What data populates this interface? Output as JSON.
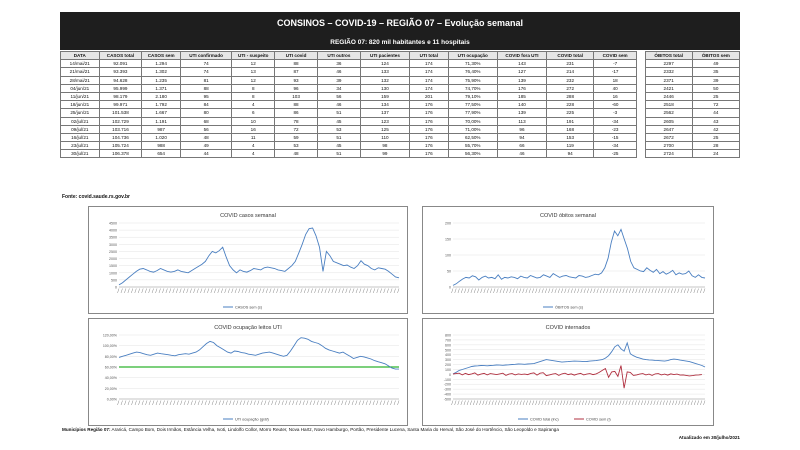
{
  "header": {
    "title": "CONSINOS – COVID-19 – REGIÃO 07 – Evolução semanal",
    "subtitle": "REGIÃO 07: 820 mil habitantes e 11 hospitais"
  },
  "table": {
    "columns": [
      "DATA",
      "CASOS total",
      "CASOS sem",
      "UTI confirmado",
      "UTI - suspeito",
      "UTI covid",
      "UTI outros",
      "UTI pacientes",
      "UTI total",
      "UTI ocupação",
      "COVID fora UTI",
      "COVID total",
      "COVID sem",
      "",
      "ÓBITOS total",
      "ÓBITOS sem"
    ],
    "rows": [
      [
        "14/mai/21",
        "92.091",
        "1.294",
        "74",
        "12",
        "88",
        "36",
        "124",
        "174",
        "71,30%",
        "143",
        "231",
        "-7",
        "",
        "2297",
        "49"
      ],
      [
        "21/mai/21",
        "93.393",
        "1.302",
        "74",
        "13",
        "87",
        "46",
        "133",
        "174",
        "76,40%",
        "127",
        "214",
        "-17",
        "",
        "2332",
        "35"
      ],
      [
        "28/mai/21",
        "94.628",
        "1.235",
        "81",
        "12",
        "93",
        "39",
        "132",
        "174",
        "75,90%",
        "139",
        "232",
        "18",
        "",
        "2371",
        "39"
      ],
      [
        "04/jun/21",
        "95.999",
        "1.371",
        "88",
        "8",
        "96",
        "34",
        "130",
        "174",
        "74,70%",
        "176",
        "272",
        "40",
        "",
        "2421",
        "50"
      ],
      [
        "11/jun/21",
        "98.179",
        "2.180",
        "95",
        "8",
        "103",
        "56",
        "159",
        "201",
        "79,10%",
        "185",
        "288",
        "16",
        "",
        "2446",
        "25"
      ],
      [
        "18/jun/21",
        "99.971",
        "1.792",
        "84",
        "4",
        "88",
        "46",
        "134",
        "176",
        "77,50%",
        "140",
        "228",
        "-60",
        "",
        "2518",
        "72"
      ],
      [
        "25/jun/21",
        "101.538",
        "1.667",
        "80",
        "6",
        "86",
        "51",
        "137",
        "176",
        "77,90%",
        "139",
        "225",
        "-3",
        "",
        "2562",
        "44"
      ],
      [
        "02/jul/21",
        "102.729",
        "1.191",
        "68",
        "10",
        "78",
        "45",
        "123",
        "176",
        "70,00%",
        "113",
        "191",
        "-34",
        "",
        "2605",
        "43"
      ],
      [
        "09/jul/21",
        "103.716",
        "987",
        "56",
        "16",
        "72",
        "53",
        "125",
        "176",
        "71,00%",
        "96",
        "168",
        "-23",
        "",
        "2647",
        "42"
      ],
      [
        "16/jul/21",
        "104.736",
        "1.020",
        "48",
        "11",
        "59",
        "51",
        "110",
        "176",
        "62,50%",
        "94",
        "153",
        "-15",
        "",
        "2672",
        "25"
      ],
      [
        "23/jul/21",
        "105.724",
        "988",
        "49",
        "4",
        "53",
        "45",
        "98",
        "176",
        "55,70%",
        "66",
        "119",
        "-34",
        "",
        "2700",
        "28"
      ],
      [
        "30/jul/21",
        "106.378",
        "654",
        "44",
        "4",
        "48",
        "51",
        "99",
        "176",
        "56,30%",
        "46",
        "94",
        "-25",
        "",
        "2724",
        "24"
      ]
    ]
  },
  "source_text": "Fonte: covid.saude.rs.gov.br",
  "footer": {
    "municipios_label": "Municípios Região 07:",
    "municipios_list": "Araricá, Campo Bom, Dois Irmãos, Estância Velha, Ivoti, Lindolfo Collor, Morro Reuter, Nova Hartz, Novo Hamburgo, Portão, Presidente Lucena, Santa Maria do Herval, São José do Hortêncio, São Leopoldo e Sapiranga",
    "updated": "Atualizado em 30/julho/2021"
  },
  "colors": {
    "header_bg": "#1e1e1e",
    "line_blue": "#4a7fc1",
    "line_red": "#b03040",
    "threshold_green": "#2db52d"
  },
  "chart_data": [
    {
      "type": "line",
      "title": "COVID casos semanal",
      "ylim": [
        0,
        4500
      ],
      "yticks": [
        "0",
        "500",
        "1000",
        "1500",
        "2000",
        "2500",
        "3000",
        "3500",
        "4000",
        "4500"
      ],
      "series": [
        {
          "name": "CASOS sem (s)",
          "color": "#4a7fc1",
          "values": [
            150,
            300,
            500,
            700,
            900,
            1100,
            1250,
            1300,
            1200,
            1100,
            1050,
            1150,
            1300,
            1200,
            1100,
            1050,
            1100,
            1200,
            1100,
            1050,
            1000,
            1150,
            1300,
            1450,
            1600,
            1800,
            2200,
            2500,
            2400,
            2550,
            2800,
            2100,
            1500,
            1200,
            1000,
            1200,
            1100,
            1050,
            1150,
            1300,
            1250,
            1200,
            1350,
            1400,
            1350,
            1300,
            1200,
            1150,
            1100,
            1300,
            1500,
            1800,
            2400,
            3000,
            3700,
            4100,
            4150,
            3600,
            2800,
            1100,
            2500,
            2200,
            1800,
            1700,
            1600,
            1500,
            1550,
            1400,
            1300,
            1500,
            1850,
            1600,
            1500,
            1300,
            1200,
            1350,
            1300,
            1250,
            1100,
            900,
            700,
            650
          ]
        }
      ]
    },
    {
      "type": "line",
      "title": "COVID óbitos semanal",
      "ylim": [
        0,
        200
      ],
      "yticks": [
        "0",
        "50",
        "100",
        "150",
        "200"
      ],
      "series": [
        {
          "name": "ÓBITOS sem (s)",
          "color": "#4a7fc1",
          "values": [
            5,
            10,
            18,
            25,
            30,
            28,
            35,
            32,
            22,
            30,
            34,
            28,
            30,
            26,
            38,
            24,
            30,
            28,
            32,
            30,
            26,
            34,
            30,
            28,
            36,
            32,
            28,
            30,
            38,
            34,
            30,
            42,
            36,
            30,
            34,
            36,
            32,
            30,
            28,
            36,
            34,
            30,
            32,
            36,
            40,
            38,
            44,
            60,
            90,
            140,
            175,
            160,
            180,
            150,
            120,
            80,
            60,
            55,
            50,
            48,
            60,
            52,
            46,
            55,
            42,
            48,
            40,
            45,
            52,
            38,
            44,
            40,
            42,
            50,
            35,
            30,
            38,
            30,
            28
          ]
        }
      ]
    },
    {
      "type": "line",
      "title": "COVID ocupação leitos UTI",
      "ylim": [
        0,
        120
      ],
      "yticks": [
        "0,00%",
        "20,00%",
        "40,00%",
        "60,00%",
        "80,00%",
        "100,00%",
        "120,00%"
      ],
      "threshold": 60,
      "series": [
        {
          "name": "UTI ocupação (gráf)",
          "color": "#4a7fc1",
          "values": [
            78,
            80,
            82,
            84,
            86,
            88,
            87,
            85,
            83,
            82,
            84,
            86,
            85,
            84,
            83,
            82,
            81,
            83,
            84,
            85,
            84,
            86,
            88,
            92,
            98,
            104,
            108,
            106,
            100,
            96,
            92,
            88,
            86,
            90,
            89,
            87,
            86,
            84,
            83,
            82,
            84,
            86,
            87,
            88,
            86,
            84,
            82,
            80,
            82,
            90,
            100,
            110,
            115,
            114,
            112,
            108,
            106,
            104,
            100,
            95,
            92,
            90,
            88,
            86,
            88,
            84,
            80,
            76,
            78,
            80,
            79,
            77,
            75,
            72,
            70,
            68,
            66,
            62,
            58,
            56,
            56
          ]
        }
      ]
    },
    {
      "type": "line",
      "title": "COVID internados",
      "ylim": [
        -500,
        800
      ],
      "yticks": [
        "-500",
        "-400",
        "-300",
        "-200",
        "-100",
        "0",
        "100",
        "200",
        "300",
        "400",
        "500",
        "600",
        "700",
        "800"
      ],
      "series": [
        {
          "name": "COVID total (inc)",
          "color": "#4a7fc1",
          "values": [
            10,
            40,
            80,
            100,
            120,
            140,
            160,
            170,
            175,
            180,
            178,
            175,
            180,
            185,
            190,
            188,
            185,
            190,
            195,
            200,
            205,
            210,
            208,
            205,
            210,
            215,
            220,
            240,
            260,
            280,
            300,
            290,
            280,
            270,
            260,
            250,
            255,
            260,
            265,
            270,
            268,
            265,
            260,
            262,
            270,
            275,
            280,
            290,
            300,
            330,
            380,
            460,
            560,
            600,
            520,
            470,
            640,
            420,
            380,
            350,
            330,
            310,
            300,
            295,
            290,
            285,
            280,
            275,
            270,
            280,
            300,
            310,
            305,
            290,
            280,
            270,
            260,
            240,
            220,
            200,
            180,
            150
          ]
        },
        {
          "name": "COVID sem (i)",
          "color": "#b03040",
          "values": [
            5,
            15,
            25,
            -10,
            20,
            -5,
            10,
            30,
            -15,
            5,
            20,
            -10,
            15,
            5,
            -5,
            10,
            25,
            -20,
            5,
            15,
            -10,
            10,
            0,
            5,
            -5,
            20,
            30,
            -15,
            25,
            35,
            -25,
            -10,
            5,
            15,
            -20,
            10,
            25,
            -5,
            10,
            -15,
            5,
            20,
            -10,
            5,
            15,
            -5,
            10,
            40,
            80,
            120,
            -60,
            50,
            60,
            -40,
            180,
            -280,
            50,
            40,
            -20,
            -10,
            5,
            15,
            -10,
            5,
            -20,
            10,
            15,
            -10,
            5,
            -15,
            10,
            -5,
            5,
            -15,
            -10,
            -20,
            -30,
            -25,
            -15,
            -10,
            -5
          ]
        }
      ]
    }
  ]
}
